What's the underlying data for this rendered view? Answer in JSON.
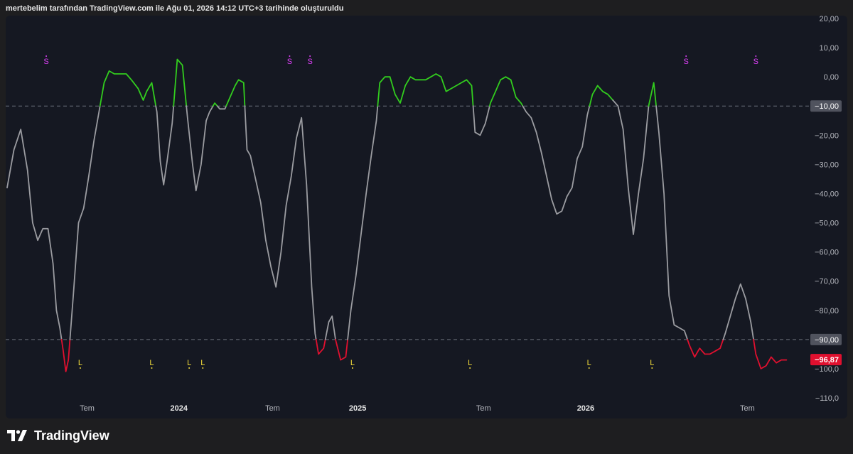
{
  "header": {
    "title": "mertebelim tarafından TradingView.com ile Ağu 01, 2026 14:12 UTC+3 tarihinde oluşturuldu"
  },
  "brand": {
    "name": "TradingView"
  },
  "chart_data": {
    "type": "line",
    "ylim": [
      -110,
      20
    ],
    "y_ticks": [
      {
        "v": 20,
        "label": "20,00"
      },
      {
        "v": 10,
        "label": "10,00"
      },
      {
        "v": 0,
        "label": "0,00"
      },
      {
        "v": -20,
        "label": "−20,00"
      },
      {
        "v": -30,
        "label": "−30,00"
      },
      {
        "v": -40,
        "label": "−40,00"
      },
      {
        "v": -50,
        "label": "−50,00"
      },
      {
        "v": -60,
        "label": "−60,00"
      },
      {
        "v": -70,
        "label": "−70,00"
      },
      {
        "v": -80,
        "label": "−80,00"
      },
      {
        "v": -100,
        "label": "−100,0"
      },
      {
        "v": -110,
        "label": "−110,0"
      }
    ],
    "x_ticks": [
      {
        "x": 4.7,
        "label": "Tem",
        "bold": false
      },
      {
        "x": 10.1,
        "label": "2024",
        "bold": true
      },
      {
        "x": 15.6,
        "label": "Tem",
        "bold": false
      },
      {
        "x": 20.6,
        "label": "2025",
        "bold": true
      },
      {
        "x": 28.0,
        "label": "Tem",
        "bold": false
      },
      {
        "x": 34.0,
        "label": "2026",
        "bold": true
      },
      {
        "x": 43.5,
        "label": "Tem",
        "bold": false
      }
    ],
    "levels": [
      {
        "value": -10,
        "label": "−10,00",
        "color": "#8b8e97"
      },
      {
        "value": -90,
        "label": "−90,00",
        "color": "#8b8e97"
      }
    ],
    "last_value": {
      "value": -96.87,
      "label": "−96,87",
      "color": "#e0102f"
    },
    "series_colors": {
      "neutral": "#9b9ca1",
      "overbought": "#32cd1e",
      "oversold": "#e0102f"
    },
    "thresholds": {
      "upper": -10,
      "lower": -90
    },
    "series": [
      {
        "x": 0,
        "y": -38
      },
      {
        "x": 0.4,
        "y": -25
      },
      {
        "x": 0.8,
        "y": -18
      },
      {
        "x": 1.2,
        "y": -32
      },
      {
        "x": 1.5,
        "y": -50
      },
      {
        "x": 1.8,
        "y": -56
      },
      {
        "x": 2.1,
        "y": -52
      },
      {
        "x": 2.4,
        "y": -52
      },
      {
        "x": 2.7,
        "y": -64
      },
      {
        "x": 2.9,
        "y": -80
      },
      {
        "x": 3.1,
        "y": -86
      },
      {
        "x": 3.3,
        "y": -94
      },
      {
        "x": 3.45,
        "y": -101
      },
      {
        "x": 3.6,
        "y": -97
      },
      {
        "x": 3.9,
        "y": -74
      },
      {
        "x": 4.2,
        "y": -50
      },
      {
        "x": 4.5,
        "y": -45
      },
      {
        "x": 4.8,
        "y": -34
      },
      {
        "x": 5.1,
        "y": -22
      },
      {
        "x": 5.4,
        "y": -12
      },
      {
        "x": 5.7,
        "y": -2
      },
      {
        "x": 6.0,
        "y": 2
      },
      {
        "x": 6.3,
        "y": 1
      },
      {
        "x": 6.7,
        "y": 1
      },
      {
        "x": 7.0,
        "y": 1
      },
      {
        "x": 7.3,
        "y": -1
      },
      {
        "x": 7.7,
        "y": -4
      },
      {
        "x": 8.0,
        "y": -8
      },
      {
        "x": 8.2,
        "y": -5
      },
      {
        "x": 8.5,
        "y": -2
      },
      {
        "x": 8.8,
        "y": -12
      },
      {
        "x": 9.0,
        "y": -29
      },
      {
        "x": 9.2,
        "y": -37
      },
      {
        "x": 9.4,
        "y": -29
      },
      {
        "x": 9.7,
        "y": -16
      },
      {
        "x": 10.0,
        "y": 6
      },
      {
        "x": 10.3,
        "y": 4
      },
      {
        "x": 10.6,
        "y": -14
      },
      {
        "x": 10.9,
        "y": -30
      },
      {
        "x": 11.1,
        "y": -39
      },
      {
        "x": 11.4,
        "y": -30
      },
      {
        "x": 11.7,
        "y": -15
      },
      {
        "x": 11.9,
        "y": -12
      },
      {
        "x": 12.2,
        "y": -9
      },
      {
        "x": 12.5,
        "y": -11
      },
      {
        "x": 12.8,
        "y": -11
      },
      {
        "x": 13.1,
        "y": -7
      },
      {
        "x": 13.4,
        "y": -3
      },
      {
        "x": 13.6,
        "y": -1
      },
      {
        "x": 13.9,
        "y": -2
      },
      {
        "x": 14.1,
        "y": -25
      },
      {
        "x": 14.3,
        "y": -27
      },
      {
        "x": 14.6,
        "y": -35
      },
      {
        "x": 14.9,
        "y": -43
      },
      {
        "x": 15.2,
        "y": -56
      },
      {
        "x": 15.5,
        "y": -65
      },
      {
        "x": 15.8,
        "y": -72
      },
      {
        "x": 16.1,
        "y": -60
      },
      {
        "x": 16.4,
        "y": -44
      },
      {
        "x": 16.7,
        "y": -34
      },
      {
        "x": 17.0,
        "y": -21
      },
      {
        "x": 17.3,
        "y": -14
      },
      {
        "x": 17.6,
        "y": -37
      },
      {
        "x": 17.9,
        "y": -72
      },
      {
        "x": 18.1,
        "y": -88
      },
      {
        "x": 18.3,
        "y": -95
      },
      {
        "x": 18.6,
        "y": -93
      },
      {
        "x": 18.9,
        "y": -84
      },
      {
        "x": 19.1,
        "y": -82
      },
      {
        "x": 19.3,
        "y": -90
      },
      {
        "x": 19.6,
        "y": -97
      },
      {
        "x": 19.9,
        "y": -96
      },
      {
        "x": 20.2,
        "y": -80
      },
      {
        "x": 20.5,
        "y": -68
      },
      {
        "x": 20.8,
        "y": -54
      },
      {
        "x": 21.1,
        "y": -40
      },
      {
        "x": 21.4,
        "y": -27
      },
      {
        "x": 21.7,
        "y": -15
      },
      {
        "x": 21.9,
        "y": -2
      },
      {
        "x": 22.2,
        "y": 0
      },
      {
        "x": 22.5,
        "y": 0
      },
      {
        "x": 22.8,
        "y": -6
      },
      {
        "x": 23.1,
        "y": -9
      },
      {
        "x": 23.4,
        "y": -3
      },
      {
        "x": 23.7,
        "y": 0
      },
      {
        "x": 24.0,
        "y": -1
      },
      {
        "x": 24.3,
        "y": -1
      },
      {
        "x": 24.6,
        "y": -1
      },
      {
        "x": 24.9,
        "y": 0
      },
      {
        "x": 25.2,
        "y": 1
      },
      {
        "x": 25.5,
        "y": 0
      },
      {
        "x": 25.8,
        "y": -5
      },
      {
        "x": 26.1,
        "y": -4
      },
      {
        "x": 26.4,
        "y": -3
      },
      {
        "x": 26.7,
        "y": -2
      },
      {
        "x": 27.0,
        "y": -1
      },
      {
        "x": 27.3,
        "y": -3
      },
      {
        "x": 27.5,
        "y": -19
      },
      {
        "x": 27.8,
        "y": -20
      },
      {
        "x": 28.1,
        "y": -16
      },
      {
        "x": 28.4,
        "y": -9
      },
      {
        "x": 28.7,
        "y": -5
      },
      {
        "x": 29.0,
        "y": -1
      },
      {
        "x": 29.3,
        "y": 0
      },
      {
        "x": 29.6,
        "y": -1
      },
      {
        "x": 29.9,
        "y": -7
      },
      {
        "x": 30.2,
        "y": -9
      },
      {
        "x": 30.5,
        "y": -12
      },
      {
        "x": 30.8,
        "y": -14
      },
      {
        "x": 31.1,
        "y": -19
      },
      {
        "x": 31.4,
        "y": -26
      },
      {
        "x": 31.7,
        "y": -34
      },
      {
        "x": 32.0,
        "y": -42
      },
      {
        "x": 32.3,
        "y": -47
      },
      {
        "x": 32.6,
        "y": -46
      },
      {
        "x": 32.9,
        "y": -41
      },
      {
        "x": 33.2,
        "y": -38
      },
      {
        "x": 33.5,
        "y": -28
      },
      {
        "x": 33.8,
        "y": -24
      },
      {
        "x": 34.1,
        "y": -13
      },
      {
        "x": 34.4,
        "y": -6
      },
      {
        "x": 34.7,
        "y": -3
      },
      {
        "x": 35.0,
        "y": -5
      },
      {
        "x": 35.3,
        "y": -6
      },
      {
        "x": 35.6,
        "y": -8
      },
      {
        "x": 35.9,
        "y": -10
      },
      {
        "x": 36.2,
        "y": -18
      },
      {
        "x": 36.5,
        "y": -38
      },
      {
        "x": 36.8,
        "y": -54
      },
      {
        "x": 37.1,
        "y": -40
      },
      {
        "x": 37.4,
        "y": -28
      },
      {
        "x": 37.7,
        "y": -10
      },
      {
        "x": 38.0,
        "y": -2
      },
      {
        "x": 38.3,
        "y": -19
      },
      {
        "x": 38.6,
        "y": -40
      },
      {
        "x": 38.9,
        "y": -75
      },
      {
        "x": 39.2,
        "y": -85
      },
      {
        "x": 39.5,
        "y": -86
      },
      {
        "x": 39.8,
        "y": -87
      },
      {
        "x": 40.1,
        "y": -92
      },
      {
        "x": 40.4,
        "y": -96
      },
      {
        "x": 40.7,
        "y": -93
      },
      {
        "x": 41.0,
        "y": -95
      },
      {
        "x": 41.3,
        "y": -95
      },
      {
        "x": 41.6,
        "y": -94
      },
      {
        "x": 41.9,
        "y": -93
      },
      {
        "x": 42.2,
        "y": -88
      },
      {
        "x": 42.5,
        "y": -82
      },
      {
        "x": 42.8,
        "y": -76
      },
      {
        "x": 43.1,
        "y": -71
      },
      {
        "x": 43.4,
        "y": -76
      },
      {
        "x": 43.7,
        "y": -84
      },
      {
        "x": 44.0,
        "y": -95
      },
      {
        "x": 44.3,
        "y": -100
      },
      {
        "x": 44.6,
        "y": -99
      },
      {
        "x": 44.9,
        "y": -96
      },
      {
        "x": 45.2,
        "y": -98
      },
      {
        "x": 45.5,
        "y": -97
      },
      {
        "x": 45.8,
        "y": -97
      }
    ],
    "sell_markers": {
      "label": "S",
      "color": "#e040fb",
      "x": [
        2.3,
        16.6,
        17.8,
        39.9,
        44.0
      ]
    },
    "buy_markers": {
      "label": "L",
      "color": "#f5dd3a",
      "x": [
        4.3,
        8.5,
        10.7,
        11.5,
        20.3,
        27.2,
        34.2,
        37.9
      ]
    }
  }
}
